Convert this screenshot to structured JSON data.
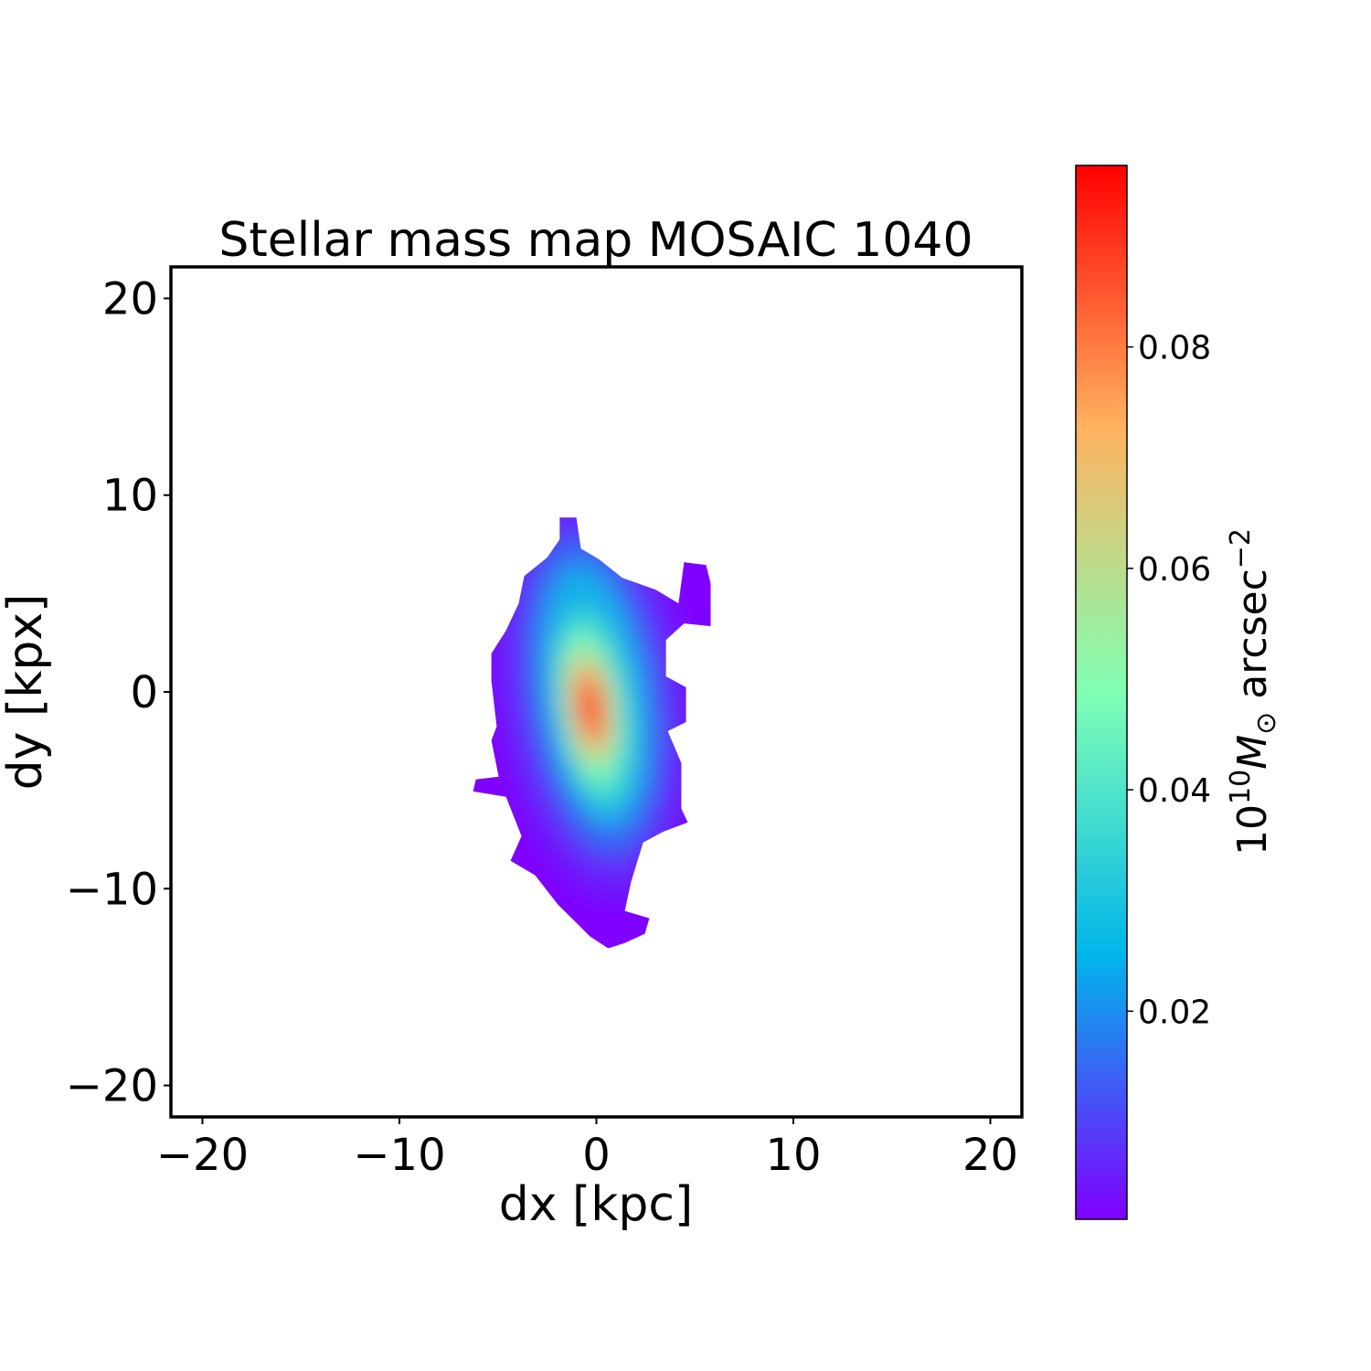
{
  "chart_data": {
    "type": "heatmap",
    "title": "Stellar mass map MOSAIC 1040",
    "xlabel": "dx [kpc]",
    "ylabel": "dy [kpx]",
    "xlim": [
      -21.6,
      21.6
    ],
    "ylim": [
      -21.6,
      21.6
    ],
    "xticks": [
      -20,
      -10,
      0,
      10,
      20
    ],
    "yticks": [
      -20,
      -10,
      0,
      10,
      20
    ],
    "xtick_labels": [
      "−20",
      "−10",
      "0",
      "10",
      "20"
    ],
    "ytick_labels": [
      "−20",
      "−10",
      "0",
      "10",
      "20"
    ],
    "grid": false,
    "colormap": "rainbow",
    "colormap_stops": [
      "#8000ff",
      "#00b5eb",
      "#80ffb4",
      "#ffb360",
      "#ff0000"
    ],
    "colorbar": {
      "range": [
        0.0012,
        0.0964
      ],
      "ticks": [
        0.02,
        0.04,
        0.06,
        0.08
      ],
      "tick_labels": [
        "0.02",
        "0.04",
        "0.06",
        "0.08"
      ],
      "label_base": "10",
      "label_exp": "10",
      "label_symbol": "M",
      "label_sub": "⊙",
      "label_unit": " arcsec",
      "label_unit_exp": "−2"
    },
    "peak": {
      "dx": -0.3,
      "dy": -0.8,
      "value": 0.096
    },
    "mask_outline_kpc": [
      [
        -1.86,
        8.86
      ],
      [
        -1.02,
        8.86
      ],
      [
        -0.79,
        7.28
      ],
      [
        0.14,
        6.73
      ],
      [
        1.3,
        5.8
      ],
      [
        3.01,
        5.19
      ],
      [
        4.17,
        4.5
      ],
      [
        4.45,
        6.59
      ],
      [
        5.57,
        6.45
      ],
      [
        5.8,
        5.52
      ],
      [
        5.8,
        3.34
      ],
      [
        4.45,
        3.48
      ],
      [
        3.53,
        2.64
      ],
      [
        3.53,
        0.79
      ],
      [
        4.55,
        0.23
      ],
      [
        4.55,
        -1.53
      ],
      [
        3.62,
        -1.99
      ],
      [
        4.31,
        -3.62
      ],
      [
        4.31,
        -5.94
      ],
      [
        4.64,
        -6.63
      ],
      [
        3.39,
        -7.1
      ],
      [
        2.37,
        -7.65
      ],
      [
        1.76,
        -9.65
      ],
      [
        1.44,
        -11.13
      ],
      [
        2.69,
        -11.5
      ],
      [
        2.46,
        -12.29
      ],
      [
        1.44,
        -12.76
      ],
      [
        0.6,
        -13.03
      ],
      [
        -0.32,
        -12.43
      ],
      [
        -1.95,
        -10.81
      ],
      [
        -3.11,
        -9.32
      ],
      [
        -4.36,
        -8.58
      ],
      [
        -3.8,
        -7.33
      ],
      [
        -4.59,
        -5.33
      ],
      [
        -6.26,
        -5.06
      ],
      [
        -6.12,
        -4.45
      ],
      [
        -4.96,
        -4.31
      ],
      [
        -5.33,
        -2.46
      ],
      [
        -5.06,
        -1.76
      ],
      [
        -5.33,
        0.56
      ],
      [
        -5.33,
        1.95
      ],
      [
        -4.59,
        3.11
      ],
      [
        -3.94,
        4.5
      ],
      [
        -3.66,
        5.89
      ],
      [
        -2.5,
        6.82
      ],
      [
        -1.86,
        7.75
      ]
    ]
  }
}
